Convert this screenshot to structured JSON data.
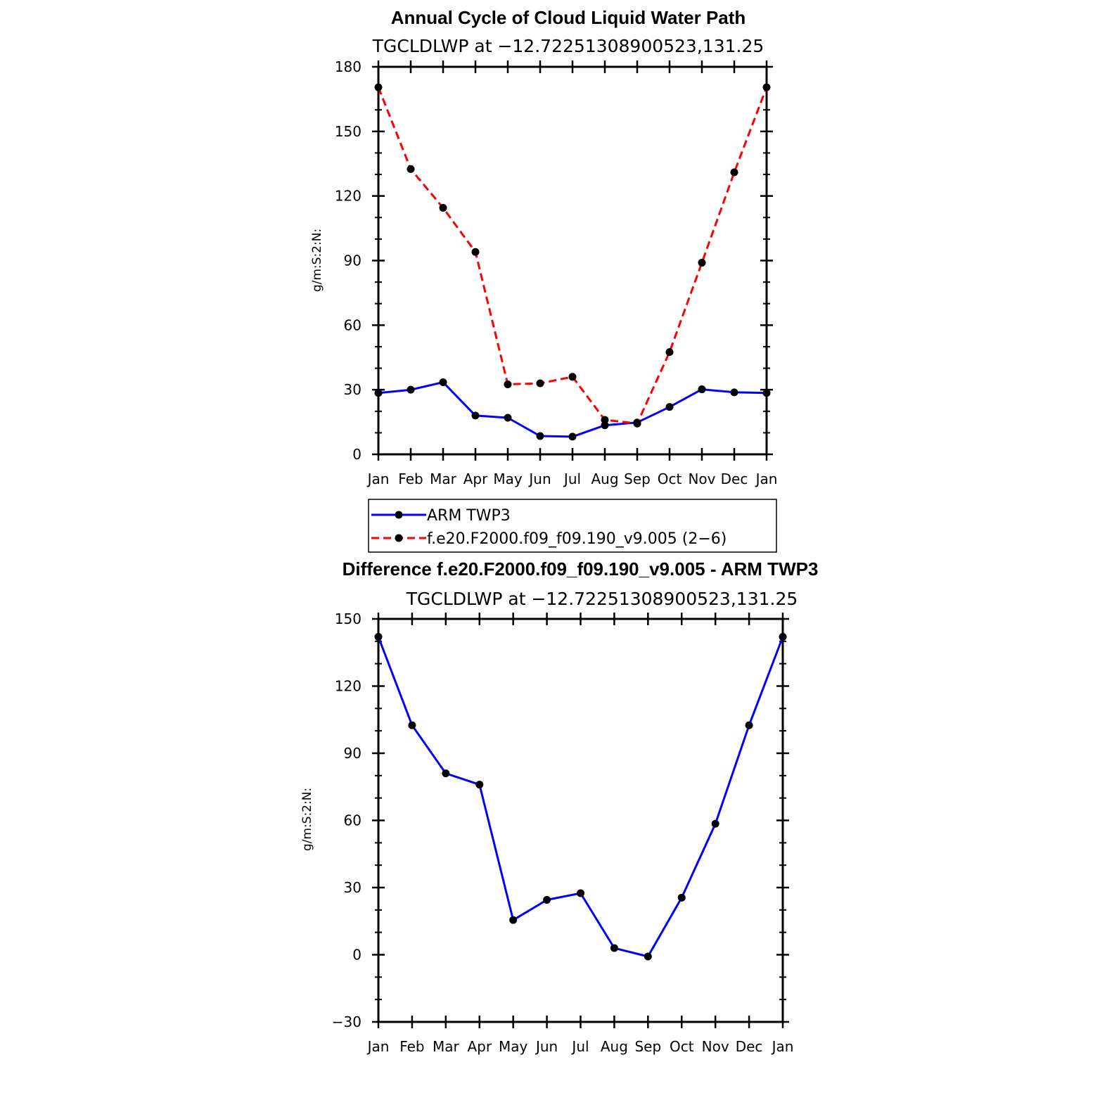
{
  "chart_data": [
    {
      "type": "line",
      "title": "Annual Cycle of Cloud Liquid Water Path",
      "subtitle": "TGCLDLWP at −12.72251308900523,131.25",
      "ylabel": "g/m:S:2:N:",
      "xlabel": "",
      "categories": [
        "Jan",
        "Feb",
        "Mar",
        "Apr",
        "May",
        "Jun",
        "Jul",
        "Aug",
        "Sep",
        "Oct",
        "Nov",
        "Dec",
        "Jan"
      ],
      "ylim": [
        0,
        180
      ],
      "yticks": [
        "0",
        "30",
        "60",
        "90",
        "120",
        "150",
        "180"
      ],
      "series": [
        {
          "name": "ARM TWP3",
          "color": "#0000ff",
          "dash": "solid",
          "values": [
            28.5,
            30.0,
            33.5,
            18.0,
            17.0,
            8.5,
            8.2,
            13.5,
            14.8,
            22.0,
            30.2,
            28.8,
            28.5
          ]
        },
        {
          "name": "f.e20.F2000.f09_f09.190_v9.005 (2−6)",
          "color": "#ff0000",
          "dash": "dashed",
          "values": [
            170.5,
            132.5,
            114.5,
            94.0,
            32.5,
            33.0,
            36.0,
            16.0,
            14.3,
            47.5,
            89.0,
            131.0,
            170.5
          ]
        }
      ],
      "legend": "below"
    },
    {
      "type": "line",
      "title": "Difference f.e20.F2000.f09_f09.190_v9.005 - ARM TWP3",
      "subtitle": "TGCLDLWP at −12.72251308900523,131.25",
      "ylabel": "g/m:S:2:N:",
      "xlabel": "",
      "categories": [
        "Jan",
        "Feb",
        "Mar",
        "Apr",
        "May",
        "Jun",
        "Jul",
        "Aug",
        "Sep",
        "Oct",
        "Nov",
        "Dec",
        "Jan"
      ],
      "ylim": [
        -30,
        150
      ],
      "yticks": [
        "−30",
        "0",
        "30",
        "60",
        "90",
        "120",
        "150"
      ],
      "series": [
        {
          "name": "Difference",
          "color": "#0000ff",
          "dash": "solid",
          "values": [
            142.0,
            102.5,
            81.0,
            76.0,
            15.5,
            24.5,
            27.5,
            3.0,
            -0.8,
            25.5,
            58.5,
            102.5,
            142.0
          ]
        }
      ]
    }
  ]
}
